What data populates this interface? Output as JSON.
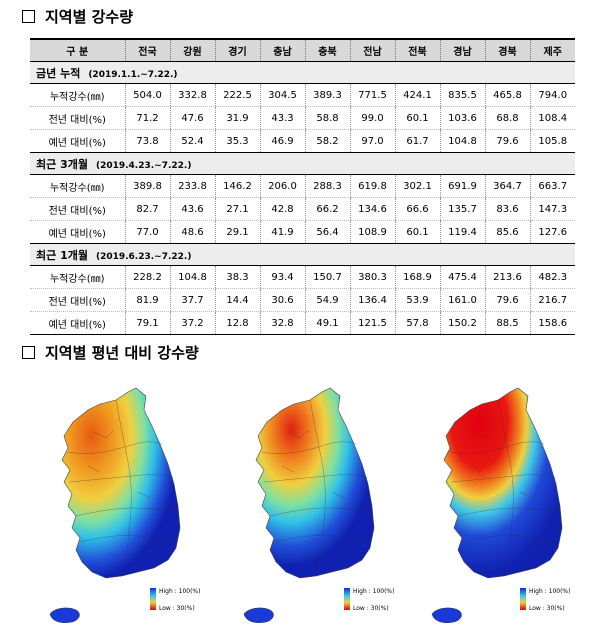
{
  "section1_title": "지역별 강수량",
  "section2_title": "지역별 평년 대비 강수량",
  "table": {
    "headers": [
      "구 분",
      "전국",
      "강원",
      "경기",
      "충남",
      "충북",
      "전남",
      "전북",
      "경남",
      "경북",
      "제주"
    ],
    "groups": [
      {
        "title": "금년 누적",
        "range": "(2019.1.1.~7.22.)",
        "rows": [
          {
            "label": "누적강수(㎜)",
            "values": [
              "504.0",
              "332.8",
              "222.5",
              "304.5",
              "389.3",
              "771.5",
              "424.1",
              "835.5",
              "465.8",
              "794.0"
            ]
          },
          {
            "label": "전년 대비(%)",
            "values": [
              "71.2",
              "47.6",
              "31.9",
              "43.3",
              "58.8",
              "99.0",
              "60.1",
              "103.6",
              "68.8",
              "108.4"
            ]
          },
          {
            "label": "예년 대비(%)",
            "values": [
              "73.8",
              "52.4",
              "35.3",
              "46.9",
              "58.2",
              "97.0",
              "61.7",
              "104.8",
              "79.6",
              "105.8"
            ]
          }
        ]
      },
      {
        "title": "최근 3개월",
        "range": "(2019.4.23.~7.22.)",
        "rows": [
          {
            "label": "누적강수(㎜)",
            "values": [
              "389.8",
              "233.8",
              "146.2",
              "206.0",
              "288.3",
              "619.8",
              "302.1",
              "691.9",
              "364.7",
              "663.7"
            ]
          },
          {
            "label": "전년 대비(%)",
            "values": [
              "82.7",
              "43.6",
              "27.1",
              "42.8",
              "66.2",
              "134.6",
              "66.6",
              "135.7",
              "83.6",
              "147.3"
            ]
          },
          {
            "label": "예년 대비(%)",
            "values": [
              "77.0",
              "48.6",
              "29.1",
              "41.9",
              "56.4",
              "108.9",
              "60.1",
              "119.4",
              "85.6",
              "127.6"
            ]
          }
        ]
      },
      {
        "title": "최근 1개월",
        "range": "(2019.6.23.~7.22.)",
        "rows": [
          {
            "label": "누적강수(㎜)",
            "values": [
              "228.2",
              "104.8",
              "38.3",
              "93.4",
              "150.7",
              "380.3",
              "168.9",
              "475.4",
              "213.6",
              "482.3"
            ]
          },
          {
            "label": "전년 대비(%)",
            "values": [
              "81.9",
              "37.7",
              "14.4",
              "30.6",
              "54.9",
              "136.4",
              "53.9",
              "161.0",
              "79.6",
              "216.7"
            ]
          },
          {
            "label": "예년 대비(%)",
            "values": [
              "79.1",
              "37.2",
              "12.8",
              "32.8",
              "49.1",
              "121.5",
              "57.8",
              "150.2",
              "88.5",
              "158.6"
            ]
          }
        ]
      }
    ]
  },
  "legend": {
    "high": "High : 100(%)",
    "low": "Low : 30(%)"
  },
  "colors": {
    "high": "#1030d0",
    "mid": "#30c8e8",
    "warm": "#f0a020",
    "low": "#e00010"
  }
}
